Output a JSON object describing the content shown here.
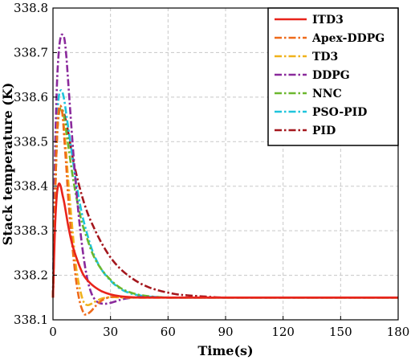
{
  "chart_data": {
    "type": "line",
    "xlabel": "Time(s)",
    "ylabel": "Stack temperature (K)",
    "xlim": [
      0,
      180
    ],
    "ylim": [
      338.1,
      338.8
    ],
    "xticks": [
      0,
      30,
      60,
      90,
      120,
      150,
      180
    ],
    "yticks": [
      338.1,
      338.2,
      338.3,
      338.4,
      338.5,
      338.6,
      338.7,
      338.8
    ],
    "xtick_labels": [
      "0",
      "30",
      "60",
      "90",
      "120",
      "150",
      "180"
    ],
    "ytick_labels": [
      "338.1",
      "338.2",
      "338.3",
      "338.4",
      "338.5",
      "338.6",
      "338.7",
      "338.8"
    ],
    "grid": true,
    "legend_position": "top-right",
    "series": [
      {
        "name": "ITD3",
        "color": "#e8241b",
        "dash": "solid",
        "x": [
          0,
          1,
          2,
          3,
          4,
          5,
          6,
          8,
          10,
          13,
          16,
          20,
          25,
          30,
          35,
          40,
          45,
          50,
          55,
          60,
          70,
          90,
          120,
          150,
          180
        ],
        "y": [
          338.15,
          338.3,
          338.38,
          338.405,
          338.4,
          338.38,
          338.36,
          338.31,
          338.27,
          338.23,
          338.2,
          338.18,
          338.165,
          338.157,
          338.153,
          338.151,
          338.15,
          338.15,
          338.15,
          338.15,
          338.15,
          338.15,
          338.15,
          338.15,
          338.15
        ]
      },
      {
        "name": "Apex-DDPG",
        "color": "#ef6a1a",
        "dash": "dashdot",
        "x": [
          0,
          1,
          2,
          3,
          4,
          5,
          6,
          7,
          8,
          10,
          12,
          14,
          16,
          17,
          18,
          20,
          22,
          25,
          28,
          32,
          36,
          40,
          50,
          60,
          90,
          120,
          150,
          180
        ],
        "y": [
          338.15,
          338.35,
          338.5,
          338.57,
          338.58,
          338.56,
          338.5,
          338.44,
          338.37,
          338.27,
          338.19,
          338.14,
          338.115,
          338.112,
          338.113,
          338.12,
          338.13,
          338.142,
          338.149,
          338.152,
          338.151,
          338.15,
          338.15,
          338.15,
          338.15,
          338.15,
          338.15,
          338.15
        ]
      },
      {
        "name": "TD3",
        "color": "#f0b21c",
        "dash": "dashdot",
        "x": [
          0,
          1,
          2,
          3,
          4,
          5,
          6,
          7,
          8,
          10,
          12,
          14,
          16,
          18,
          20,
          22,
          25,
          28,
          32,
          36,
          40,
          50,
          60,
          90,
          120,
          150,
          180
        ],
        "y": [
          338.15,
          338.35,
          338.51,
          338.57,
          338.58,
          338.56,
          338.52,
          338.47,
          338.41,
          338.31,
          338.22,
          338.17,
          338.14,
          338.133,
          338.136,
          338.141,
          338.147,
          338.15,
          338.151,
          338.15,
          338.15,
          338.15,
          338.15,
          338.15,
          338.15,
          338.15,
          338.15
        ]
      },
      {
        "name": "DDPG",
        "color": "#8a2a9c",
        "dash": "dashdot",
        "x": [
          0,
          1,
          2,
          3,
          4,
          5,
          6,
          7,
          8,
          10,
          12,
          14,
          16,
          18,
          20,
          22,
          24,
          27,
          30,
          33,
          36,
          40,
          45,
          50,
          60,
          90,
          120,
          150,
          180
        ],
        "y": [
          338.15,
          338.45,
          338.62,
          338.7,
          338.735,
          338.74,
          338.73,
          338.69,
          338.63,
          338.51,
          338.4,
          338.31,
          338.24,
          338.19,
          338.16,
          338.145,
          338.138,
          338.136,
          338.138,
          338.142,
          338.146,
          338.149,
          338.151,
          338.151,
          338.15,
          338.15,
          338.15,
          338.15,
          338.15
        ]
      },
      {
        "name": "NNC",
        "color": "#6bb72e",
        "dash": "dashdot",
        "x": [
          0,
          1,
          2,
          3,
          4,
          5,
          6,
          7,
          8,
          10,
          12,
          15,
          18,
          21,
          25,
          30,
          35,
          40,
          45,
          50,
          55,
          60,
          70,
          90,
          120,
          150,
          180
        ],
        "y": [
          338.15,
          338.35,
          338.5,
          338.56,
          338.575,
          338.57,
          338.55,
          338.52,
          338.49,
          338.43,
          338.38,
          338.32,
          338.28,
          338.245,
          338.215,
          338.19,
          338.172,
          338.162,
          338.156,
          338.153,
          338.151,
          338.15,
          338.15,
          338.15,
          338.15,
          338.15,
          338.15
        ]
      },
      {
        "name": "PSO-PID",
        "color": "#1fc4dc",
        "dash": "dashdot",
        "x": [
          0,
          1,
          2,
          3,
          4,
          5,
          6,
          7,
          8,
          10,
          12,
          15,
          18,
          21,
          25,
          30,
          35,
          40,
          45,
          50,
          55,
          60,
          70,
          90,
          120,
          150,
          180
        ],
        "y": [
          338.15,
          338.38,
          338.54,
          338.6,
          338.615,
          338.61,
          338.59,
          338.56,
          338.53,
          338.47,
          338.41,
          338.34,
          338.29,
          338.25,
          338.215,
          338.188,
          338.17,
          338.16,
          338.155,
          338.152,
          338.151,
          338.15,
          338.15,
          338.15,
          338.15,
          338.15,
          338.15
        ]
      },
      {
        "name": "PID",
        "color": "#a4171d",
        "dash": "dashdot",
        "x": [
          0,
          1,
          2,
          3,
          4,
          5,
          6,
          8,
          10,
          12,
          15,
          18,
          21,
          25,
          30,
          35,
          40,
          45,
          50,
          55,
          60,
          65,
          70,
          80,
          90,
          120,
          150,
          180
        ],
        "y": [
          338.15,
          338.35,
          338.5,
          338.56,
          338.575,
          338.57,
          338.56,
          338.52,
          338.47,
          338.43,
          338.38,
          338.34,
          338.31,
          338.275,
          338.24,
          338.215,
          338.197,
          338.183,
          338.173,
          338.166,
          338.161,
          338.157,
          338.155,
          338.152,
          338.15,
          338.15,
          338.15,
          338.15
        ]
      }
    ]
  }
}
